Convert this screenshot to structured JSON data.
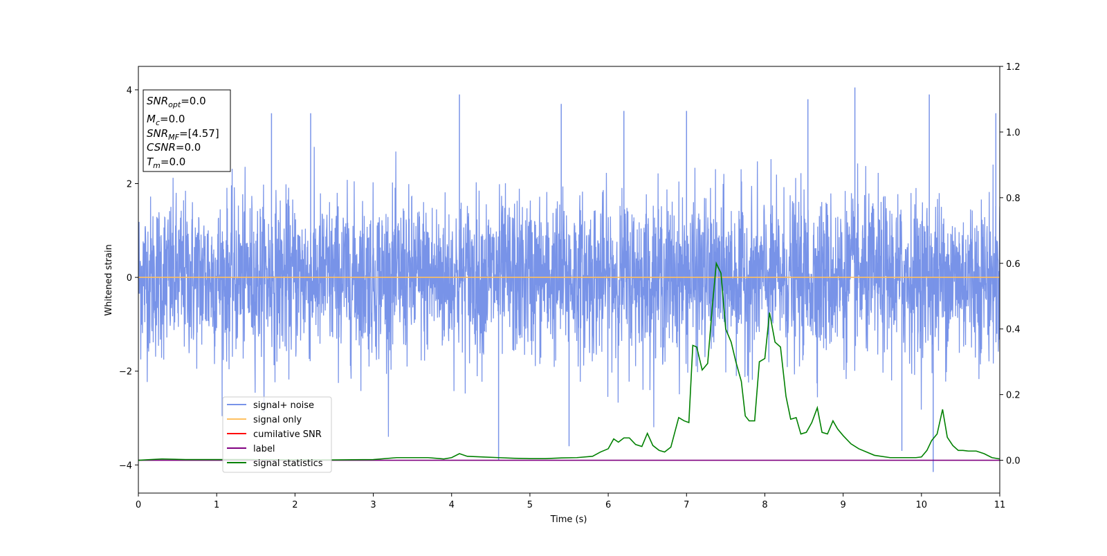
{
  "chart_data": {
    "type": "line",
    "xlabel": "Time (s)",
    "ylabel": "Whitened strain",
    "xlim": [
      0,
      11
    ],
    "ylim": [
      -4.6,
      4.5
    ],
    "y2lim": [
      -0.1,
      1.2
    ],
    "x_ticks": [
      0,
      1,
      2,
      3,
      4,
      5,
      6,
      7,
      8,
      9,
      10,
      11
    ],
    "x_tick_labels": [
      "0",
      "1",
      "2",
      "3",
      "4",
      "5",
      "6",
      "7",
      "8",
      "9",
      "10",
      "11"
    ],
    "y_ticks": [
      -4,
      -2,
      0,
      2,
      4
    ],
    "y_tick_labels": [
      "−4",
      "−2",
      "0",
      "2",
      "4"
    ],
    "y2_ticks": [
      0.0,
      0.2,
      0.4,
      0.6,
      0.8,
      1.0,
      1.2
    ],
    "y2_tick_labels": [
      "0.0",
      "0.2",
      "0.4",
      "0.6",
      "0.8",
      "1.0",
      "1.2"
    ],
    "grid": false,
    "legend_position": "lower-left",
    "info_box": {
      "snr_opt": {
        "name": "SNR",
        "sub": "opt",
        "value": "=0.0"
      },
      "mc": {
        "name": "M",
        "sub": "c",
        "value": "=0.0"
      },
      "snr_mf": {
        "name": "SNR",
        "sub": "MF",
        "value": "=[4.57]"
      },
      "csnr": {
        "name": "CSNR",
        "value": "=0.0"
      },
      "tm": {
        "name": "T",
        "sub": "m",
        "value": "=0.0"
      }
    },
    "series": [
      {
        "name": "signal+ noise",
        "color": "#7893e8",
        "axis": "left",
        "noise_sigma": 0.85,
        "sample_rate_hz": 4096,
        "spikes": [
          [
            1.7,
            3.5
          ],
          [
            2.2,
            3.5
          ],
          [
            4.1,
            3.9
          ],
          [
            4.6,
            -3.9
          ],
          [
            5.4,
            3.7
          ],
          [
            6.2,
            3.55
          ],
          [
            7.0,
            3.55
          ],
          [
            8.55,
            3.8
          ],
          [
            9.15,
            4.05
          ],
          [
            9.75,
            -3.7
          ],
          [
            10.1,
            3.9
          ],
          [
            10.15,
            -4.15
          ],
          [
            10.95,
            3.5
          ],
          [
            5.5,
            -3.6
          ]
        ]
      },
      {
        "name": "signal only",
        "color": "#ffc060",
        "axis": "left",
        "x": [
          0,
          11
        ],
        "y": [
          0,
          0
        ]
      },
      {
        "name": "cumilative SNR",
        "color": "#ff0000",
        "axis": "right",
        "x": [],
        "y": []
      },
      {
        "name": "label",
        "color": "#800080",
        "axis": "right",
        "x": [
          0,
          11
        ],
        "y": [
          0.0,
          0.0
        ]
      },
      {
        "name": "signal statistics",
        "color": "#008000",
        "axis": "right",
        "x": [
          0,
          0.3,
          0.6,
          1,
          1.4,
          2,
          2.5,
          3,
          3.3,
          3.5,
          3.7,
          3.9,
          4.0,
          4.1,
          4.2,
          4.4,
          4.6,
          4.8,
          5,
          5.2,
          5.4,
          5.6,
          5.8,
          5.9,
          6.0,
          6.07,
          6.13,
          6.2,
          6.27,
          6.35,
          6.43,
          6.5,
          6.57,
          6.65,
          6.72,
          6.8,
          6.9,
          6.97,
          7.03,
          7.08,
          7.13,
          7.2,
          7.27,
          7.33,
          7.38,
          7.44,
          7.5,
          7.57,
          7.63,
          7.7,
          7.75,
          7.8,
          7.87,
          7.93,
          8.0,
          8.06,
          8.13,
          8.2,
          8.27,
          8.33,
          8.4,
          8.46,
          8.53,
          8.6,
          8.67,
          8.73,
          8.8,
          8.87,
          8.93,
          9.0,
          9.1,
          9.2,
          9.4,
          9.6,
          9.8,
          9.93,
          10.0,
          10.07,
          10.13,
          10.2,
          10.27,
          10.33,
          10.4,
          10.47,
          10.53,
          10.6,
          10.7,
          10.8,
          10.9,
          11.0
        ],
        "y": [
          0.0,
          0.004,
          0.002,
          0.002,
          0.002,
          0.001,
          0.001,
          0.002,
          0.008,
          0.008,
          0.008,
          0.004,
          0.008,
          0.02,
          0.012,
          0.01,
          0.008,
          0.006,
          0.005,
          0.005,
          0.007,
          0.008,
          0.012,
          0.025,
          0.035,
          0.065,
          0.055,
          0.068,
          0.068,
          0.048,
          0.042,
          0.082,
          0.045,
          0.03,
          0.025,
          0.04,
          0.13,
          0.12,
          0.115,
          0.35,
          0.345,
          0.275,
          0.295,
          0.47,
          0.6,
          0.57,
          0.4,
          0.36,
          0.3,
          0.24,
          0.135,
          0.12,
          0.12,
          0.3,
          0.31,
          0.45,
          0.36,
          0.345,
          0.195,
          0.125,
          0.13,
          0.08,
          0.085,
          0.115,
          0.16,
          0.085,
          0.08,
          0.12,
          0.095,
          0.075,
          0.05,
          0.035,
          0.015,
          0.008,
          0.008,
          0.008,
          0.01,
          0.03,
          0.06,
          0.08,
          0.155,
          0.07,
          0.045,
          0.03,
          0.03,
          0.028,
          0.028,
          0.02,
          0.008,
          0.004
        ]
      }
    ]
  }
}
